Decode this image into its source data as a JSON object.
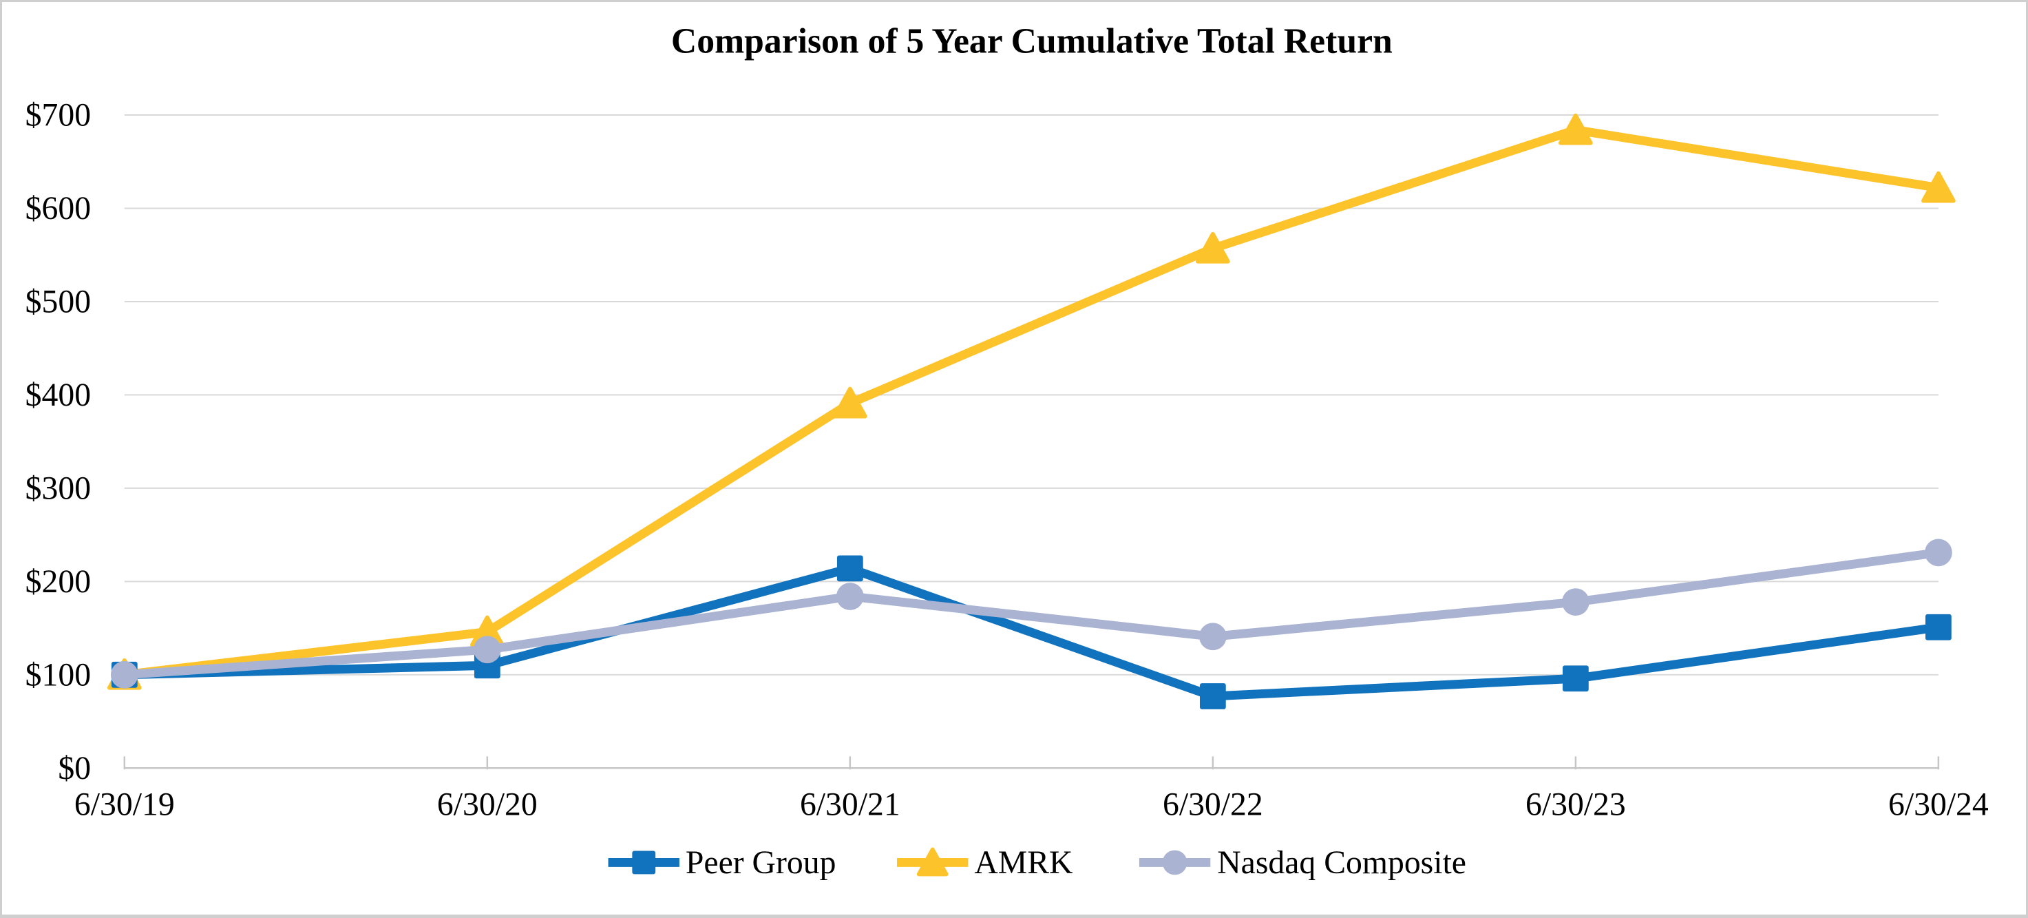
{
  "title": "Comparison of 5 Year Cumulative Total Return",
  "chart_data": {
    "type": "line",
    "title": "Comparison of 5 Year Cumulative Total Return",
    "categories": [
      "6/30/19",
      "6/30/20",
      "6/30/21",
      "6/30/22",
      "6/30/23",
      "6/30/24"
    ],
    "series": [
      {
        "name": "Peer Group",
        "marker": "square",
        "color": "#1172BD",
        "z": 1,
        "values": [
          100,
          110,
          214,
          77,
          96,
          151
        ]
      },
      {
        "name": "AMRK",
        "marker": "triangle",
        "color": "#FDC32B",
        "z": 0,
        "values": [
          100,
          146,
          391,
          557,
          684,
          622
        ]
      },
      {
        "name": "Nasdaq Composite",
        "marker": "circle",
        "color": "#AAB4D2",
        "z": 2,
        "values": [
          100,
          127,
          184,
          141,
          178,
          231
        ]
      }
    ],
    "xlabel": "",
    "ylabel": "",
    "ylim": [
      0,
      700
    ],
    "ytick_step": 100,
    "y_tick_labels": [
      "$0",
      "$100",
      "$200",
      "$300",
      "$400",
      "$500",
      "$600",
      "$700"
    ],
    "grid": true,
    "legend_position": "bottom"
  },
  "style_colors": {
    "gridline": "#D9D9D9",
    "axis_line": "#C6C6C6",
    "tick": "#C6C6C6",
    "frame_border": "#CFCFCF",
    "background": "#FFFFFF",
    "text": "#000000"
  }
}
